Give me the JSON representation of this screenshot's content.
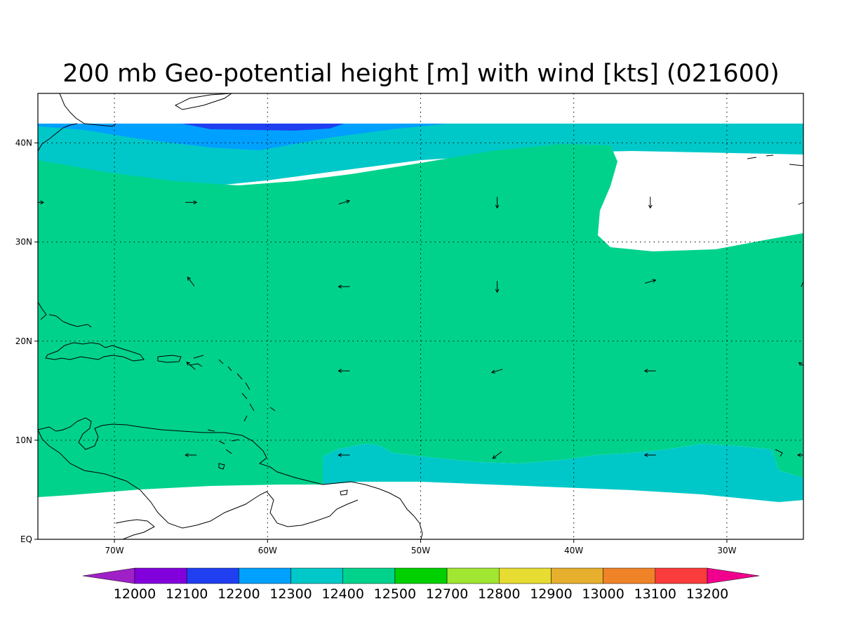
{
  "title": "200 mb Geo-potential height [m] with wind [kts] (021600)",
  "map": {
    "projection": "lat-lon",
    "lon_range": [
      -75,
      -25
    ],
    "lat_range": [
      0,
      45
    ],
    "data_lat_range": [
      4,
      42
    ],
    "gridlines": "dotted",
    "lon_ticks": [
      {
        "lon": -70,
        "label": "70W"
      },
      {
        "lon": -60,
        "label": "60W"
      },
      {
        "lon": -50,
        "label": "50W"
      },
      {
        "lon": -40,
        "label": "40W"
      },
      {
        "lon": -30,
        "label": "30W"
      }
    ],
    "lat_ticks": [
      {
        "lat": 0,
        "label": "EQ"
      },
      {
        "lat": 10,
        "label": "10N"
      },
      {
        "lat": 20,
        "label": "20N"
      },
      {
        "lat": 30,
        "label": "30N"
      },
      {
        "lat": 40,
        "label": "40N"
      }
    ],
    "colors": {
      "12200": "#1f3ff0",
      "12300": "#00a0ff",
      "12400": "#00c8c8",
      "12500": "#00d28c"
    },
    "wind_vectors": [
      {
        "lon": -75,
        "lat": 34,
        "u": 1,
        "v": 0
      },
      {
        "lon": -65,
        "lat": 34,
        "u": 1,
        "v": 0
      },
      {
        "lon": -55,
        "lat": 34,
        "u": 1,
        "v": 0.3
      },
      {
        "lon": -45,
        "lat": 34,
        "u": 0,
        "v": -1
      },
      {
        "lon": -35,
        "lat": 34,
        "u": 0,
        "v": -1
      },
      {
        "lon": -25,
        "lat": 34,
        "u": 1,
        "v": 0.4
      },
      {
        "lon": -65,
        "lat": 26,
        "u": -0.6,
        "v": 0.8
      },
      {
        "lon": -55,
        "lat": 25.5,
        "u": -1,
        "v": 0
      },
      {
        "lon": -45,
        "lat": 25.5,
        "u": 0,
        "v": -1
      },
      {
        "lon": -35,
        "lat": 26,
        "u": 1,
        "v": 0.3
      },
      {
        "lon": -25,
        "lat": 26,
        "u": 0.4,
        "v": 0.9
      },
      {
        "lon": -65,
        "lat": 17.5,
        "u": -0.7,
        "v": 0.6
      },
      {
        "lon": -55,
        "lat": 17,
        "u": -1,
        "v": 0
      },
      {
        "lon": -45,
        "lat": 17,
        "u": -1,
        "v": -0.3
      },
      {
        "lon": -35,
        "lat": 17,
        "u": -1,
        "v": 0
      },
      {
        "lon": -25,
        "lat": 17.5,
        "u": -0.8,
        "v": 0.6
      },
      {
        "lon": -65,
        "lat": 8.5,
        "u": -1,
        "v": 0
      },
      {
        "lon": -55,
        "lat": 8.5,
        "u": -1,
        "v": 0
      },
      {
        "lon": -45,
        "lat": 8.5,
        "u": -0.8,
        "v": -0.6
      },
      {
        "lon": -35,
        "lat": 8.5,
        "u": -1,
        "v": 0
      },
      {
        "lon": -25,
        "lat": 8.5,
        "u": -1,
        "v": 0
      }
    ]
  },
  "colorbar": {
    "colors": [
      "#a020c8",
      "#8200dc",
      "#1f3ff0",
      "#00a0ff",
      "#00c8c8",
      "#00d28c",
      "#00d000",
      "#a0e632",
      "#e6dc32",
      "#e6af2d",
      "#f08228",
      "#fa3c3c",
      "#f0008c"
    ],
    "labels": [
      "12000",
      "12100",
      "12200",
      "12300",
      "12400",
      "12500",
      "12700",
      "12800",
      "12900",
      "13000",
      "13100",
      "13200"
    ]
  }
}
